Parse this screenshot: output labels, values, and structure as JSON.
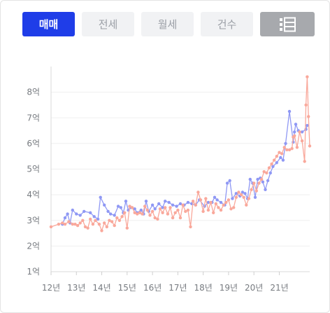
{
  "tabs": [
    {
      "label": "매매",
      "active": true
    },
    {
      "label": "전세",
      "active": false
    },
    {
      "label": "월세",
      "active": false
    },
    {
      "label": "건수",
      "active": false
    }
  ],
  "list_view_icon": "list-view-icon",
  "colors": {
    "accent": "#1f3de8",
    "series_blue": "#8f98f4",
    "series_salmon": "#f9a89b"
  },
  "chart_data": {
    "type": "line",
    "title": "",
    "xlabel": "",
    "ylabel": "",
    "xlim": [
      12,
      22.2
    ],
    "ylim": [
      1,
      9
    ],
    "grid": true,
    "y_ticks": [
      {
        "value": 1,
        "label": "1억"
      },
      {
        "value": 2,
        "label": "2억"
      },
      {
        "value": 3,
        "label": "3억"
      },
      {
        "value": 4,
        "label": "4억"
      },
      {
        "value": 5,
        "label": "5억"
      },
      {
        "value": 6,
        "label": "6억"
      },
      {
        "value": 7,
        "label": "7억"
      },
      {
        "value": 8,
        "label": "8억"
      }
    ],
    "x_ticks": [
      {
        "value": 12,
        "label": "12년"
      },
      {
        "value": 13,
        "label": "13년"
      },
      {
        "value": 14,
        "label": "14년"
      },
      {
        "value": 15,
        "label": "15년"
      },
      {
        "value": 16,
        "label": "16년"
      },
      {
        "value": 17,
        "label": "17년"
      },
      {
        "value": 18,
        "label": "18년"
      },
      {
        "value": 19,
        "label": "19년"
      },
      {
        "value": 20,
        "label": "20년"
      },
      {
        "value": 21,
        "label": "21년"
      }
    ],
    "series": [
      {
        "color": "#8f98f4",
        "points": [
          [
            12.45,
            2.85
          ],
          [
            12.55,
            3.1
          ],
          [
            12.65,
            3.25
          ],
          [
            12.75,
            2.9
          ],
          [
            12.85,
            3.4
          ],
          [
            13.0,
            3.25
          ],
          [
            13.15,
            3.2
          ],
          [
            13.3,
            3.35
          ],
          [
            13.55,
            3.3
          ],
          [
            13.7,
            3.15
          ],
          [
            13.85,
            3.05
          ],
          [
            13.95,
            3.9
          ],
          [
            14.1,
            3.6
          ],
          [
            14.25,
            3.35
          ],
          [
            14.35,
            3.25
          ],
          [
            14.5,
            3.2
          ],
          [
            14.65,
            3.55
          ],
          [
            14.75,
            3.5
          ],
          [
            14.85,
            3.3
          ],
          [
            14.95,
            3.75
          ],
          [
            15.05,
            3.4
          ],
          [
            15.15,
            3.5
          ],
          [
            15.3,
            3.45
          ],
          [
            15.4,
            3.3
          ],
          [
            15.55,
            3.4
          ],
          [
            15.65,
            3.25
          ],
          [
            15.75,
            3.75
          ],
          [
            15.85,
            3.35
          ],
          [
            16.0,
            3.6
          ],
          [
            16.1,
            3.45
          ],
          [
            16.25,
            3.65
          ],
          [
            16.4,
            3.5
          ],
          [
            16.5,
            3.75
          ],
          [
            16.65,
            3.7
          ],
          [
            16.8,
            3.6
          ],
          [
            16.95,
            3.55
          ],
          [
            17.1,
            3.65
          ],
          [
            17.25,
            3.6
          ],
          [
            17.4,
            3.7
          ],
          [
            17.55,
            3.65
          ],
          [
            17.7,
            3.6
          ],
          [
            17.85,
            3.8
          ],
          [
            18.05,
            3.55
          ],
          [
            18.2,
            3.7
          ],
          [
            18.35,
            3.7
          ],
          [
            18.45,
            3.9
          ],
          [
            18.55,
            3.8
          ],
          [
            18.7,
            3.7
          ],
          [
            18.85,
            3.6
          ],
          [
            18.95,
            4.45
          ],
          [
            19.05,
            4.55
          ],
          [
            19.15,
            3.85
          ],
          [
            19.3,
            4.05
          ],
          [
            19.45,
            3.95
          ],
          [
            19.55,
            4.1
          ],
          [
            19.65,
            4.05
          ],
          [
            19.75,
            3.85
          ],
          [
            19.85,
            4.6
          ],
          [
            19.95,
            4.45
          ],
          [
            20.05,
            3.9
          ],
          [
            20.15,
            4.6
          ],
          [
            20.25,
            4.65
          ],
          [
            20.35,
            4.5
          ],
          [
            20.45,
            4.2
          ],
          [
            20.55,
            4.55
          ],
          [
            20.65,
            4.85
          ],
          [
            20.75,
            5.1
          ],
          [
            20.9,
            5.25
          ],
          [
            21.05,
            5.45
          ],
          [
            21.15,
            5.35
          ],
          [
            21.25,
            6.0
          ],
          [
            21.4,
            7.25
          ],
          [
            21.55,
            6.05
          ],
          [
            21.6,
            6.45
          ],
          [
            21.65,
            6.75
          ],
          [
            21.75,
            6.5
          ],
          [
            21.9,
            6.45
          ],
          [
            22.05,
            6.55
          ],
          [
            22.1,
            6.7
          ]
        ]
      },
      {
        "color": "#f9a89b",
        "points": [
          [
            12.0,
            2.75
          ],
          [
            12.3,
            2.85
          ],
          [
            12.45,
            2.9
          ],
          [
            12.55,
            2.85
          ],
          [
            12.7,
            2.95
          ],
          [
            12.85,
            2.85
          ],
          [
            12.95,
            2.85
          ],
          [
            13.05,
            2.8
          ],
          [
            13.15,
            2.9
          ],
          [
            13.25,
            3.0
          ],
          [
            13.35,
            2.75
          ],
          [
            13.45,
            2.7
          ],
          [
            13.55,
            3.05
          ],
          [
            13.65,
            2.85
          ],
          [
            13.75,
            3.0
          ],
          [
            13.9,
            2.85
          ],
          [
            14.0,
            2.6
          ],
          [
            14.1,
            2.9
          ],
          [
            14.2,
            2.75
          ],
          [
            14.3,
            3.0
          ],
          [
            14.4,
            2.95
          ],
          [
            14.5,
            2.8
          ],
          [
            14.6,
            3.1
          ],
          [
            14.7,
            3.0
          ],
          [
            14.8,
            3.15
          ],
          [
            14.9,
            3.3
          ],
          [
            15.0,
            2.7
          ],
          [
            15.1,
            3.55
          ],
          [
            15.2,
            3.5
          ],
          [
            15.3,
            3.3
          ],
          [
            15.4,
            3.25
          ],
          [
            15.5,
            3.3
          ],
          [
            15.6,
            3.25
          ],
          [
            15.7,
            3.55
          ],
          [
            15.8,
            3.4
          ],
          [
            15.9,
            3.2
          ],
          [
            16.0,
            3.35
          ],
          [
            16.1,
            3.1
          ],
          [
            16.2,
            3.05
          ],
          [
            16.3,
            3.45
          ],
          [
            16.4,
            3.3
          ],
          [
            16.5,
            3.5
          ],
          [
            16.6,
            3.25
          ],
          [
            16.7,
            3.5
          ],
          [
            16.8,
            3.1
          ],
          [
            16.9,
            3.3
          ],
          [
            17.0,
            3.4
          ],
          [
            17.1,
            3.1
          ],
          [
            17.2,
            3.6
          ],
          [
            17.3,
            3.35
          ],
          [
            17.4,
            3.4
          ],
          [
            17.5,
            2.75
          ],
          [
            17.6,
            3.75
          ],
          [
            17.7,
            3.6
          ],
          [
            17.8,
            4.1
          ],
          [
            17.9,
            3.8
          ],
          [
            18.0,
            3.35
          ],
          [
            18.1,
            3.85
          ],
          [
            18.2,
            3.4
          ],
          [
            18.3,
            3.7
          ],
          [
            18.4,
            3.3
          ],
          [
            18.5,
            3.65
          ],
          [
            18.6,
            3.5
          ],
          [
            18.7,
            3.4
          ],
          [
            18.8,
            3.6
          ],
          [
            18.9,
            3.7
          ],
          [
            19.0,
            3.8
          ],
          [
            19.1,
            3.45
          ],
          [
            19.2,
            3.5
          ],
          [
            19.3,
            3.9
          ],
          [
            19.4,
            4.1
          ],
          [
            19.5,
            4.0
          ],
          [
            19.6,
            3.9
          ],
          [
            19.7,
            3.6
          ],
          [
            19.8,
            3.85
          ],
          [
            19.9,
            4.2
          ],
          [
            20.0,
            4.45
          ],
          [
            20.1,
            4.15
          ],
          [
            20.2,
            4.45
          ],
          [
            20.3,
            4.6
          ],
          [
            20.4,
            4.9
          ],
          [
            20.5,
            4.85
          ],
          [
            20.6,
            5.05
          ],
          [
            20.7,
            5.2
          ],
          [
            20.8,
            5.35
          ],
          [
            20.9,
            5.5
          ],
          [
            21.0,
            5.65
          ],
          [
            21.1,
            5.6
          ],
          [
            21.2,
            5.85
          ],
          [
            21.3,
            5.75
          ],
          [
            21.4,
            5.75
          ],
          [
            21.5,
            5.8
          ],
          [
            21.55,
            6.25
          ],
          [
            21.6,
            6.3
          ],
          [
            21.7,
            5.85
          ],
          [
            21.8,
            6.45
          ],
          [
            21.9,
            6.1
          ],
          [
            22.0,
            5.3
          ],
          [
            22.05,
            7.5
          ],
          [
            22.1,
            8.6
          ],
          [
            22.15,
            7.05
          ],
          [
            22.2,
            5.9
          ]
        ]
      }
    ]
  }
}
